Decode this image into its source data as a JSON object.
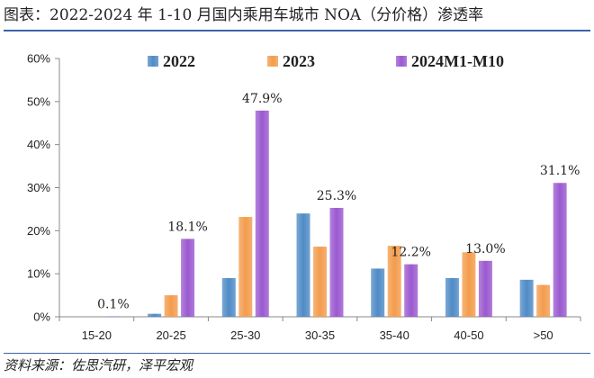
{
  "title": "图表：2022-2024 年 1-10 月国内乘用车城市 NOA（分价格）渗透率",
  "source": "资料来源：佐思汽研，泽平宏观",
  "colors": {
    "2022": "#4f8bc6",
    "2023": "#f39c4c",
    "2024M1-M10": "#9b59d0"
  },
  "chart_data": {
    "type": "bar",
    "title": "2022-2024 年 1-10 月国内乘用车城市 NOA（分价格）渗透率",
    "xlabel": "",
    "ylabel": "",
    "ylim": [
      0,
      60
    ],
    "yticks": [
      "0%",
      "10%",
      "20%",
      "30%",
      "40%",
      "50%",
      "60%"
    ],
    "categories": [
      "15-20",
      "20-25",
      "25-30",
      "30-35",
      "35-40",
      "40-50",
      ">50"
    ],
    "series": [
      {
        "name": "2022",
        "values": [
          0,
          0.7,
          9.0,
          24.0,
          11.2,
          9.0,
          8.6
        ]
      },
      {
        "name": "2023",
        "values": [
          0,
          5.0,
          23.2,
          16.3,
          16.5,
          15.0,
          7.4
        ]
      },
      {
        "name": "2024M1-M10",
        "values": [
          0.1,
          18.1,
          47.9,
          25.3,
          12.2,
          13.0,
          31.1
        ]
      }
    ],
    "data_labels": [
      {
        "category": "15-20",
        "series": "2024M1-M10",
        "text": "0.1%"
      },
      {
        "category": "20-25",
        "series": "2024M1-M10",
        "text": "18.1%"
      },
      {
        "category": "25-30",
        "series": "2024M1-M10",
        "text": "47.9%"
      },
      {
        "category": "30-35",
        "series": "2024M1-M10",
        "text": "25.3%"
      },
      {
        "category": "35-40",
        "series": "2024M1-M10",
        "text": "12.2%"
      },
      {
        "category": "40-50",
        "series": "2024M1-M10",
        "text": "13.0%"
      },
      {
        "category": ">50",
        "series": "2024M1-M10",
        "text": "31.1%"
      }
    ],
    "legend": "top",
    "grid": false
  }
}
